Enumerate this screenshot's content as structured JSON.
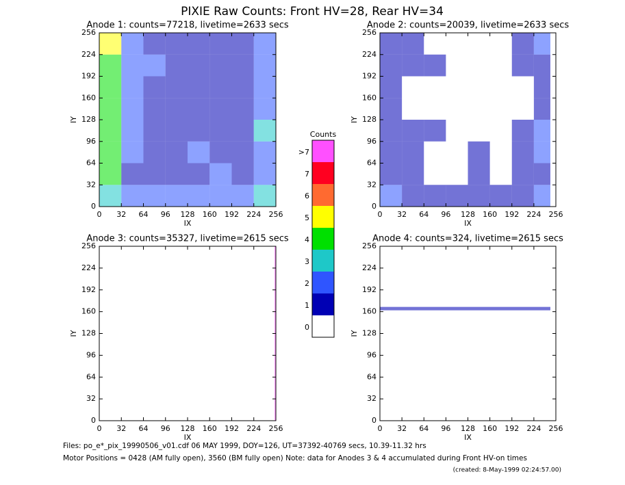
{
  "page": {
    "title": "PIXIE Raw Counts:  Front HV=28, Rear HV=34",
    "notes": [
      "Files: po_e*_pix_19990506_v01.cdf    06 MAY 1999, DOY=126, UT=37392-40769 secs, 10.39-11.32 hrs",
      "Motor Positions = 0428 (AM fully open), 3560 (BM fully open)    Note: data for Anodes 3 & 4 accumulated during Front HV-on times",
      "(created:  8-May-1999 02:24:57.00)"
    ]
  },
  "chart_data": [
    {
      "type": "heatmap",
      "title": "Anode 1: counts=77218, livetime=2633 secs",
      "xlabel": "IX",
      "ylabel": "IY",
      "xlim": [
        0,
        256
      ],
      "ylim": [
        0,
        256
      ],
      "xticks": [
        0,
        32,
        64,
        96,
        128,
        160,
        192,
        224,
        256
      ],
      "yticks": [
        0,
        32,
        64,
        96,
        128,
        160,
        192,
        224,
        256
      ],
      "x_edges": [
        0,
        32,
        64,
        96,
        128,
        160,
        192,
        224,
        256
      ],
      "y_edges": [
        0,
        32,
        64,
        96,
        128,
        160,
        192,
        224,
        256
      ],
      "z": [
        [
          3,
          2,
          2,
          2,
          2,
          2,
          2,
          3
        ],
        [
          4,
          1,
          1,
          1,
          1,
          2,
          1,
          2
        ],
        [
          4,
          2,
          1,
          1,
          2,
          1,
          1,
          2
        ],
        [
          4,
          2,
          1,
          1,
          1,
          1,
          1,
          3
        ],
        [
          4,
          2,
          1,
          1,
          1,
          1,
          1,
          2
        ],
        [
          4,
          2,
          1,
          1,
          1,
          1,
          1,
          2
        ],
        [
          4,
          2,
          2,
          1,
          1,
          1,
          1,
          2
        ],
        [
          5,
          2,
          1,
          1,
          1,
          1,
          1,
          2
        ]
      ]
    },
    {
      "type": "heatmap",
      "title": "Anode 2: counts=20039, livetime=2633 secs",
      "xlabel": "IX",
      "ylabel": "IY",
      "xlim": [
        0,
        256
      ],
      "ylim": [
        0,
        256
      ],
      "xticks": [
        0,
        32,
        64,
        96,
        128,
        160,
        192,
        224,
        256
      ],
      "yticks": [
        0,
        32,
        64,
        96,
        128,
        160,
        192,
        224,
        256
      ],
      "x_edges": [
        0,
        32,
        64,
        96,
        128,
        160,
        192,
        224,
        248
      ],
      "y_edges": [
        0,
        32,
        64,
        96,
        128,
        160,
        192,
        224,
        256
      ],
      "z": [
        [
          2,
          1,
          1,
          1,
          1,
          1,
          1,
          2
        ],
        [
          1,
          1,
          0,
          0,
          1,
          0,
          1,
          1
        ],
        [
          1,
          1,
          0,
          0,
          1,
          0,
          1,
          2
        ],
        [
          1,
          1,
          1,
          0,
          0,
          0,
          1,
          2
        ],
        [
          1,
          0,
          0,
          0,
          0,
          0,
          0,
          1
        ],
        [
          1,
          0,
          0,
          0,
          0,
          0,
          0,
          1
        ],
        [
          1,
          1,
          1,
          0,
          0,
          0,
          1,
          1
        ],
        [
          1,
          1,
          0,
          0,
          0,
          0,
          1,
          2
        ]
      ]
    },
    {
      "type": "heatmap",
      "title": "Anode 3: counts=35327, livetime=2615 secs",
      "xlabel": "IX",
      "ylabel": "IY",
      "xlim": [
        0,
        256
      ],
      "ylim": [
        0,
        256
      ],
      "xticks": [
        0,
        32,
        64,
        96,
        128,
        160,
        192,
        224,
        256
      ],
      "yticks": [
        0,
        32,
        64,
        96,
        128,
        160,
        192,
        224,
        256
      ],
      "x_edges": [
        0,
        254,
        256
      ],
      "y_edges": [
        0,
        256
      ],
      "z": [
        [
          0,
          8
        ]
      ]
    },
    {
      "type": "heatmap",
      "title": "Anode 4: counts=324, livetime=2615 secs",
      "xlabel": "IX",
      "ylabel": "IY",
      "xlim": [
        0,
        256
      ],
      "ylim": [
        0,
        256
      ],
      "xticks": [
        0,
        32,
        64,
        96,
        128,
        160,
        192,
        224,
        256
      ],
      "yticks": [
        0,
        32,
        64,
        96,
        128,
        160,
        192,
        224,
        256
      ],
      "x_edges": [
        0,
        248,
        256
      ],
      "y_edges": [
        0,
        162,
        167,
        256
      ],
      "z": [
        [
          0,
          0
        ],
        [
          1,
          0
        ],
        [
          0,
          0
        ]
      ]
    },
    {
      "type": "colorbar",
      "title": "Counts",
      "ticks": [
        0,
        1,
        2,
        3,
        4,
        5,
        6,
        7,
        {
          "value": 8,
          "label": ">7"
        }
      ],
      "colors": [
        "#ffffff",
        "#0000b4",
        "#2f55ff",
        "#1ec8c8",
        "#00e000",
        "#ffff00",
        "#ff6a30",
        "#ff0020",
        "#ff50ff"
      ]
    }
  ]
}
